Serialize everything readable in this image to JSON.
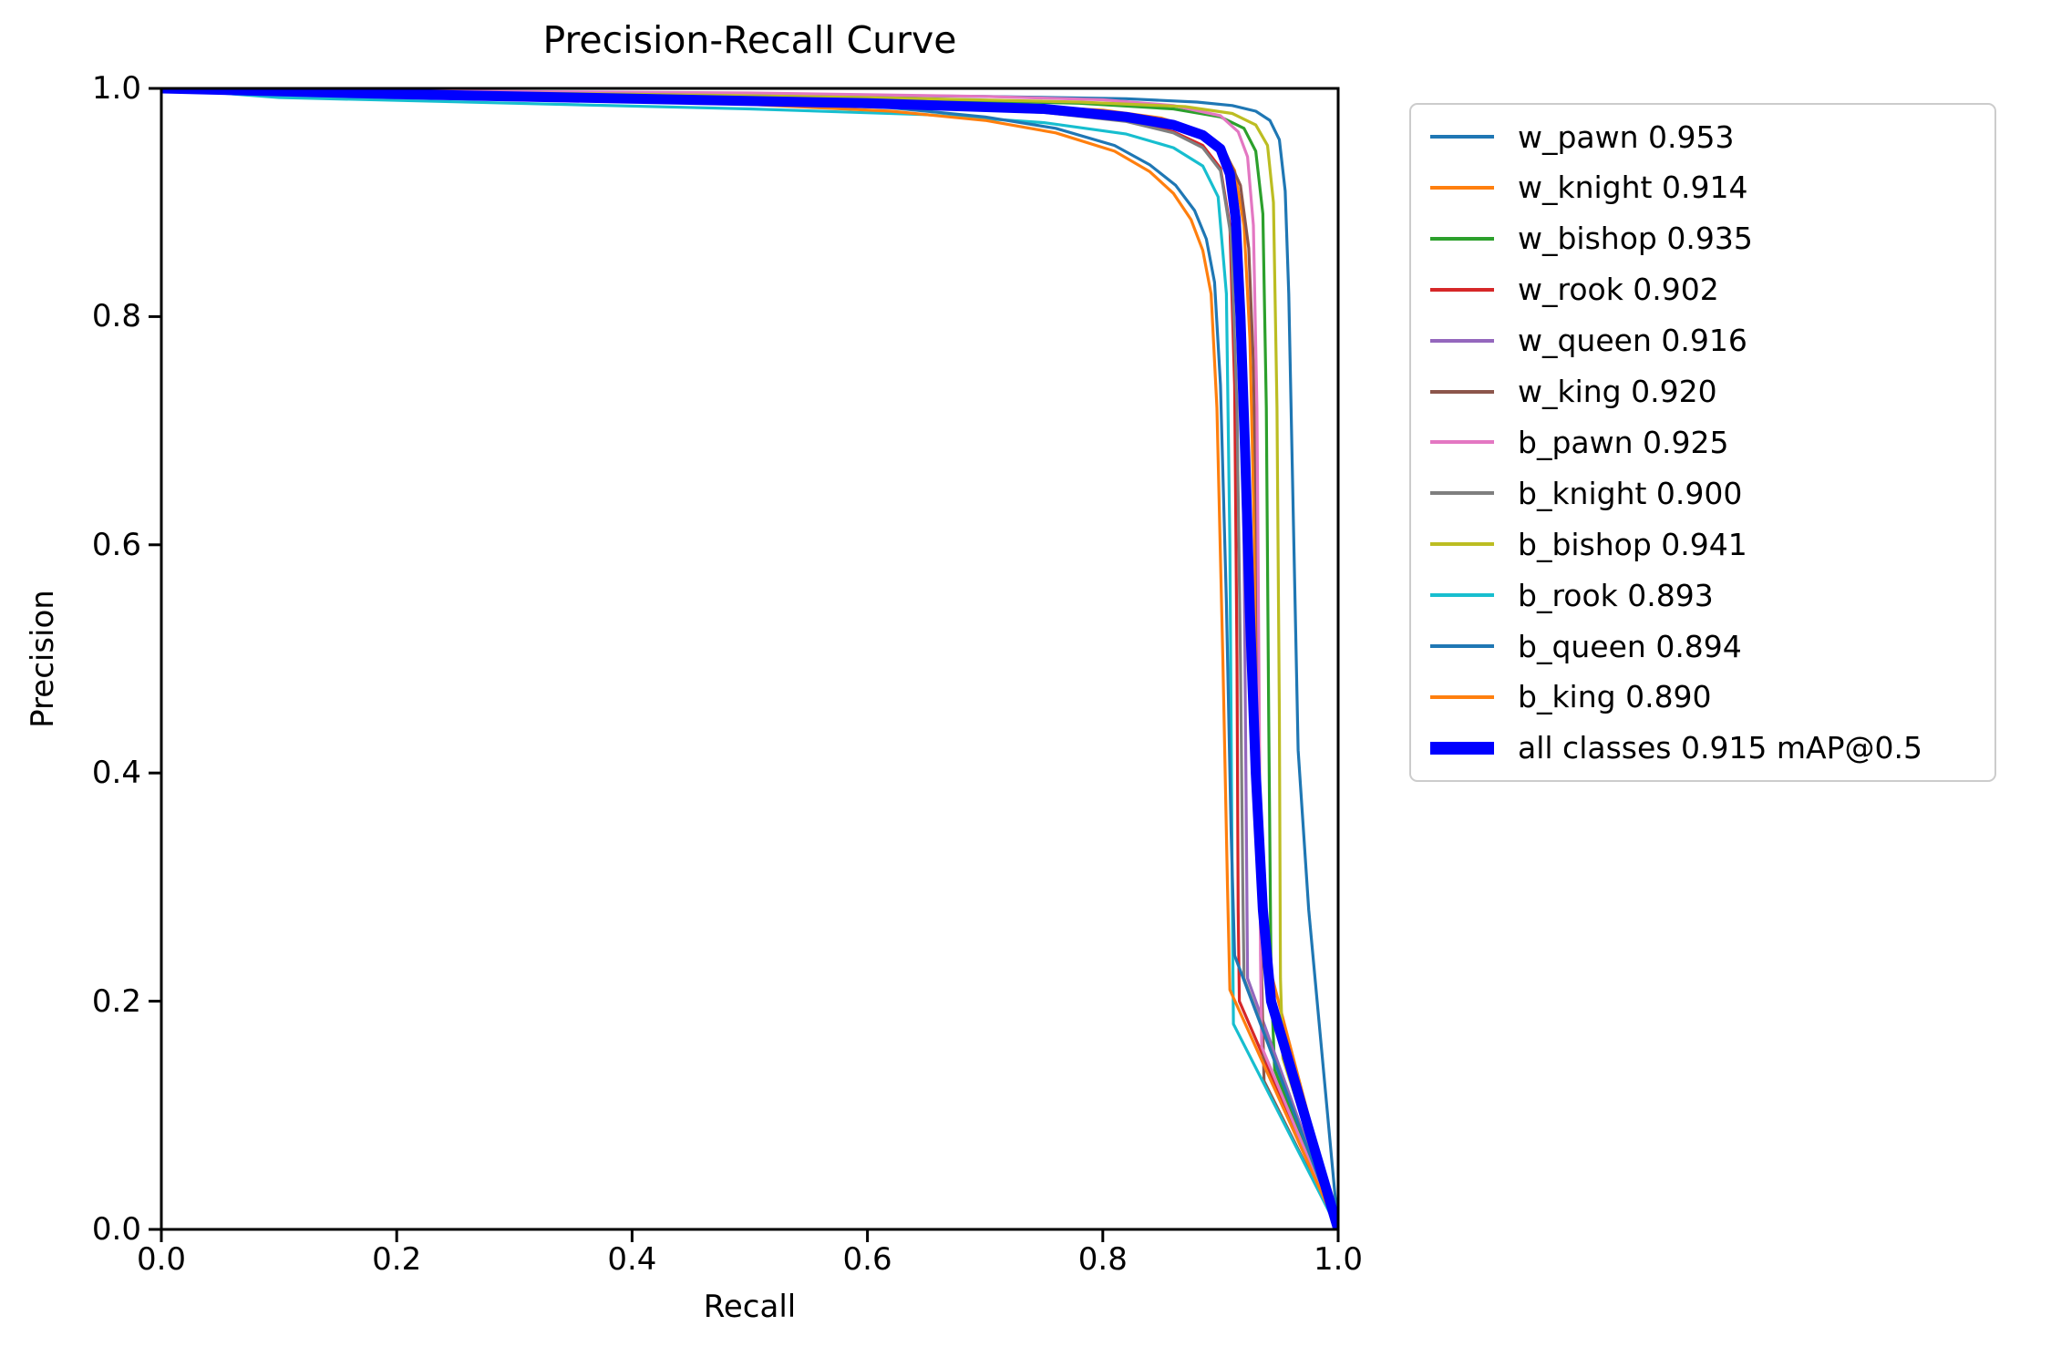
{
  "styles": {
    "background": "#ffffff",
    "axis_color": "#000000",
    "text_color": "#000000",
    "legend_border_color": "#cccccc",
    "all_classes_color": "#0000ff"
  },
  "chart_data": {
    "type": "line",
    "title": "Precision-Recall Curve",
    "xlabel": "Recall",
    "ylabel": "Precision",
    "xlim": [
      0.0,
      1.0
    ],
    "ylim": [
      0.0,
      1.0
    ],
    "grid": false,
    "legend_position": "outside-right",
    "x_ticks": [
      {
        "v": 0.0,
        "label": "0.0"
      },
      {
        "v": 0.2,
        "label": "0.2"
      },
      {
        "v": 0.4,
        "label": "0.4"
      },
      {
        "v": 0.6,
        "label": "0.6"
      },
      {
        "v": 0.8,
        "label": "0.8"
      },
      {
        "v": 1.0,
        "label": "1.0"
      }
    ],
    "y_ticks": [
      {
        "v": 0.0,
        "label": "0.0"
      },
      {
        "v": 0.2,
        "label": "0.2"
      },
      {
        "v": 0.4,
        "label": "0.4"
      },
      {
        "v": 0.6,
        "label": "0.6"
      },
      {
        "v": 0.8,
        "label": "0.8"
      },
      {
        "v": 1.0,
        "label": "1.0"
      }
    ],
    "series": [
      {
        "name": "w_pawn",
        "ap": 0.953,
        "label": "w_pawn 0.953",
        "color": "#1f77b4",
        "line_width": "thin",
        "points": [
          [
            0,
            1
          ],
          [
            0.1,
            0.999
          ],
          [
            0.3,
            0.997
          ],
          [
            0.5,
            0.995
          ],
          [
            0.7,
            0.993
          ],
          [
            0.82,
            0.991
          ],
          [
            0.88,
            0.988
          ],
          [
            0.91,
            0.985
          ],
          [
            0.93,
            0.98
          ],
          [
            0.942,
            0.972
          ],
          [
            0.95,
            0.955
          ],
          [
            0.955,
            0.91
          ],
          [
            0.958,
            0.82
          ],
          [
            0.962,
            0.62
          ],
          [
            0.966,
            0.42
          ],
          [
            0.975,
            0.28
          ],
          [
            1,
            0
          ]
        ]
      },
      {
        "name": "w_knight",
        "ap": 0.914,
        "label": "w_knight 0.914",
        "color": "#ff7f0e",
        "line_width": "thin",
        "points": [
          [
            0,
            1
          ],
          [
            0.1,
            0.998
          ],
          [
            0.3,
            0.995
          ],
          [
            0.5,
            0.991
          ],
          [
            0.7,
            0.986
          ],
          [
            0.8,
            0.981
          ],
          [
            0.85,
            0.974
          ],
          [
            0.88,
            0.964
          ],
          [
            0.9,
            0.95
          ],
          [
            0.912,
            0.928
          ],
          [
            0.92,
            0.88
          ],
          [
            0.925,
            0.78
          ],
          [
            0.929,
            0.6
          ],
          [
            0.932,
            0.4
          ],
          [
            0.934,
            0.26
          ],
          [
            1,
            0
          ]
        ]
      },
      {
        "name": "w_bishop",
        "ap": 0.935,
        "label": "w_bishop 0.935",
        "color": "#2ca02c",
        "line_width": "thin",
        "points": [
          [
            0,
            1
          ],
          [
            0.2,
            0.997
          ],
          [
            0.4,
            0.994
          ],
          [
            0.6,
            0.991
          ],
          [
            0.78,
            0.987
          ],
          [
            0.86,
            0.982
          ],
          [
            0.9,
            0.975
          ],
          [
            0.92,
            0.965
          ],
          [
            0.93,
            0.945
          ],
          [
            0.936,
            0.89
          ],
          [
            0.939,
            0.72
          ],
          [
            0.941,
            0.45
          ],
          [
            0.943,
            0.22
          ],
          [
            0.946,
            0.14
          ],
          [
            1,
            0
          ]
        ]
      },
      {
        "name": "w_rook",
        "ap": 0.902,
        "label": "w_rook 0.902",
        "color": "#d62728",
        "line_width": "thin",
        "points": [
          [
            0,
            1
          ],
          [
            0.2,
            0.995
          ],
          [
            0.4,
            0.991
          ],
          [
            0.6,
            0.986
          ],
          [
            0.75,
            0.98
          ],
          [
            0.82,
            0.972
          ],
          [
            0.86,
            0.962
          ],
          [
            0.885,
            0.95
          ],
          [
            0.9,
            0.93
          ],
          [
            0.908,
            0.88
          ],
          [
            0.912,
            0.74
          ],
          [
            0.914,
            0.5
          ],
          [
            0.915,
            0.28
          ],
          [
            0.916,
            0.2
          ],
          [
            1,
            0
          ]
        ]
      },
      {
        "name": "w_queen",
        "ap": 0.916,
        "label": "w_queen 0.916",
        "color": "#9467bd",
        "line_width": "thin",
        "points": [
          [
            0,
            1
          ],
          [
            0.2,
            0.996
          ],
          [
            0.4,
            0.992
          ],
          [
            0.6,
            0.988
          ],
          [
            0.75,
            0.983
          ],
          [
            0.82,
            0.976
          ],
          [
            0.86,
            0.967
          ],
          [
            0.89,
            0.955
          ],
          [
            0.905,
            0.938
          ],
          [
            0.913,
            0.9
          ],
          [
            0.917,
            0.8
          ],
          [
            0.92,
            0.6
          ],
          [
            0.922,
            0.35
          ],
          [
            0.923,
            0.22
          ],
          [
            1,
            0
          ]
        ]
      },
      {
        "name": "w_king",
        "ap": 0.92,
        "label": "w_king 0.920",
        "color": "#8c564b",
        "line_width": "thin",
        "points": [
          [
            0,
            1
          ],
          [
            0.1,
            0.996
          ],
          [
            0.3,
            0.992
          ],
          [
            0.5,
            0.988
          ],
          [
            0.7,
            0.983
          ],
          [
            0.8,
            0.977
          ],
          [
            0.85,
            0.969
          ],
          [
            0.885,
            0.958
          ],
          [
            0.905,
            0.942
          ],
          [
            0.917,
            0.915
          ],
          [
            0.924,
            0.86
          ],
          [
            0.928,
            0.76
          ],
          [
            0.931,
            0.6
          ],
          [
            0.933,
            0.42
          ],
          [
            0.935,
            0.22
          ],
          [
            0.937,
            0.13
          ],
          [
            1,
            0
          ]
        ]
      },
      {
        "name": "b_pawn",
        "ap": 0.925,
        "label": "b_pawn 0.925",
        "color": "#e377c2",
        "line_width": "thin",
        "points": [
          [
            0,
            1
          ],
          [
            0.2,
            0.998
          ],
          [
            0.5,
            0.996
          ],
          [
            0.7,
            0.993
          ],
          [
            0.8,
            0.99
          ],
          [
            0.86,
            0.985
          ],
          [
            0.9,
            0.976
          ],
          [
            0.915,
            0.962
          ],
          [
            0.923,
            0.94
          ],
          [
            0.928,
            0.88
          ],
          [
            0.931,
            0.72
          ],
          [
            0.933,
            0.45
          ],
          [
            0.934,
            0.24
          ],
          [
            0.935,
            0.16
          ],
          [
            1,
            0
          ]
        ]
      },
      {
        "name": "b_knight",
        "ap": 0.9,
        "label": "b_knight 0.900",
        "color": "#7f7f7f",
        "line_width": "thin",
        "points": [
          [
            0,
            1
          ],
          [
            0.2,
            0.994
          ],
          [
            0.4,
            0.99
          ],
          [
            0.6,
            0.985
          ],
          [
            0.75,
            0.979
          ],
          [
            0.82,
            0.971
          ],
          [
            0.86,
            0.961
          ],
          [
            0.885,
            0.948
          ],
          [
            0.9,
            0.928
          ],
          [
            0.909,
            0.87
          ],
          [
            0.914,
            0.72
          ],
          [
            0.917,
            0.5
          ],
          [
            0.919,
            0.3
          ],
          [
            0.92,
            0.22
          ],
          [
            1,
            0
          ]
        ]
      },
      {
        "name": "b_bishop",
        "ap": 0.941,
        "label": "b_bishop 0.941",
        "color": "#bcbd22",
        "line_width": "thin",
        "points": [
          [
            0,
            1
          ],
          [
            0.2,
            0.997
          ],
          [
            0.4,
            0.995
          ],
          [
            0.6,
            0.992
          ],
          [
            0.78,
            0.988
          ],
          [
            0.87,
            0.984
          ],
          [
            0.91,
            0.978
          ],
          [
            0.93,
            0.968
          ],
          [
            0.94,
            0.95
          ],
          [
            0.945,
            0.9
          ],
          [
            0.948,
            0.72
          ],
          [
            0.95,
            0.45
          ],
          [
            0.951,
            0.22
          ],
          [
            0.953,
            0.15
          ],
          [
            1,
            0
          ]
        ]
      },
      {
        "name": "b_rook",
        "ap": 0.893,
        "label": "b_rook 0.893",
        "color": "#17becf",
        "line_width": "thin",
        "points": [
          [
            0,
            1
          ],
          [
            0.1,
            0.992
          ],
          [
            0.3,
            0.987
          ],
          [
            0.5,
            0.982
          ],
          [
            0.65,
            0.977
          ],
          [
            0.75,
            0.97
          ],
          [
            0.82,
            0.96
          ],
          [
            0.86,
            0.948
          ],
          [
            0.885,
            0.932
          ],
          [
            0.898,
            0.905
          ],
          [
            0.905,
            0.82
          ],
          [
            0.908,
            0.6
          ],
          [
            0.91,
            0.3
          ],
          [
            0.911,
            0.18
          ],
          [
            1,
            0
          ]
        ]
      },
      {
        "name": "b_queen",
        "ap": 0.894,
        "label": "b_queen 0.894",
        "color": "#1f77b4",
        "line_width": "thin",
        "points": [
          [
            0,
            1
          ],
          [
            0.1,
            0.997
          ],
          [
            0.3,
            0.993
          ],
          [
            0.5,
            0.988
          ],
          [
            0.62,
            0.983
          ],
          [
            0.7,
            0.975
          ],
          [
            0.76,
            0.965
          ],
          [
            0.81,
            0.95
          ],
          [
            0.84,
            0.933
          ],
          [
            0.862,
            0.915
          ],
          [
            0.878,
            0.893
          ],
          [
            0.888,
            0.868
          ],
          [
            0.895,
            0.83
          ],
          [
            0.9,
            0.74
          ],
          [
            0.905,
            0.55
          ],
          [
            0.909,
            0.35
          ],
          [
            0.912,
            0.24
          ],
          [
            1,
            0
          ]
        ]
      },
      {
        "name": "b_king",
        "ap": 0.89,
        "label": "b_king 0.890",
        "color": "#ff7f0e",
        "line_width": "thin",
        "points": [
          [
            0,
            1
          ],
          [
            0.1,
            0.996
          ],
          [
            0.3,
            0.991
          ],
          [
            0.5,
            0.986
          ],
          [
            0.62,
            0.98
          ],
          [
            0.7,
            0.972
          ],
          [
            0.76,
            0.961
          ],
          [
            0.81,
            0.945
          ],
          [
            0.84,
            0.927
          ],
          [
            0.86,
            0.908
          ],
          [
            0.875,
            0.885
          ],
          [
            0.885,
            0.858
          ],
          [
            0.892,
            0.82
          ],
          [
            0.897,
            0.72
          ],
          [
            0.902,
            0.5
          ],
          [
            0.906,
            0.3
          ],
          [
            0.908,
            0.21
          ],
          [
            1,
            0
          ]
        ]
      },
      {
        "name": "all classes",
        "ap": 0.915,
        "label": "all classes 0.915 mAP@0.5",
        "color": "#0000ff",
        "line_width": "thick",
        "points": [
          [
            0,
            1
          ],
          [
            0.2,
            0.995
          ],
          [
            0.4,
            0.991
          ],
          [
            0.6,
            0.987
          ],
          [
            0.75,
            0.982
          ],
          [
            0.82,
            0.975
          ],
          [
            0.86,
            0.968
          ],
          [
            0.885,
            0.959
          ],
          [
            0.9,
            0.947
          ],
          [
            0.908,
            0.925
          ],
          [
            0.913,
            0.885
          ],
          [
            0.917,
            0.8
          ],
          [
            0.921,
            0.68
          ],
          [
            0.925,
            0.54
          ],
          [
            0.93,
            0.4
          ],
          [
            0.936,
            0.28
          ],
          [
            0.943,
            0.2
          ],
          [
            1,
            0
          ]
        ]
      }
    ]
  }
}
